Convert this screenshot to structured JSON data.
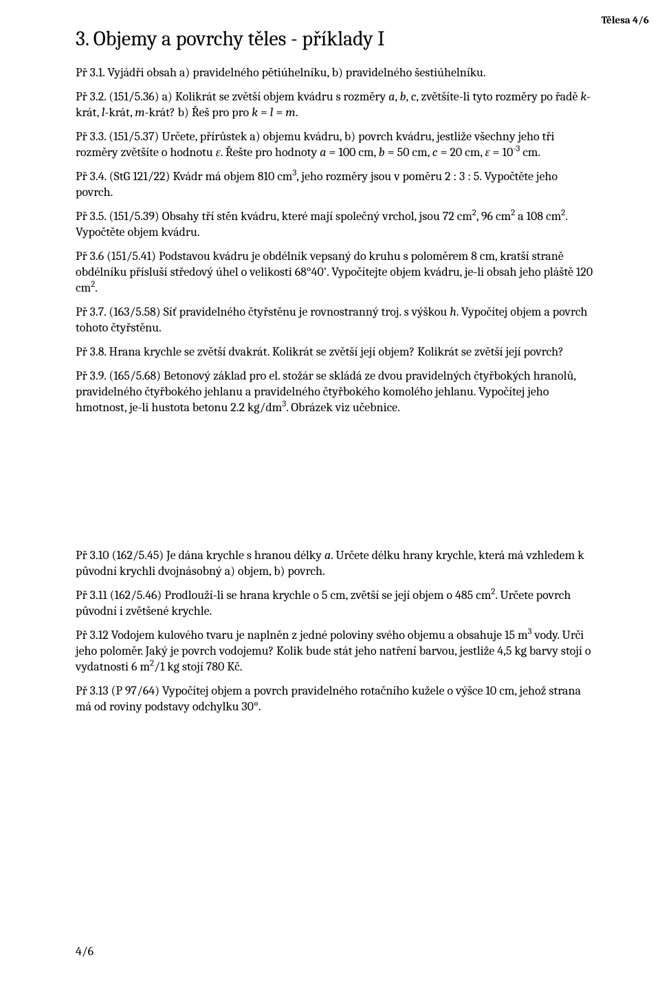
{
  "header": {
    "right": "Tělesa  4/6"
  },
  "title": "3. Objemy a povrchy těles - příklady I",
  "paras": {
    "p1": {
      "a": "Př 3.1. Vyjádři obsah a) pravidelného pětiúhelníku, b) pravidelného šestiúhelníku."
    },
    "p2": {
      "a": "Př 3.2.  (151/5.36)  a) Kolikrát se zvětší objem kvádru s rozměry ",
      "b": ", zvětšíte-li tyto rozměry po řadě ",
      "c": "-krát, ",
      "d": "-krát, ",
      "e": "-krát? b) Řeš pro pro ",
      "f": " = ",
      "g": " = ",
      "h": "."
    },
    "p3": {
      "a": "Př 3.3. (151/5.37) Určete, přírůstek a) objemu kvádru, b) povrch kvádru, jestliže všechny jeho tři rozměry zvětšíte o hodnotu ",
      "b": ". Řešte pro hodnoty ",
      "c": " = 100 cm, ",
      "d": " = 50 cm, ",
      "e": " = 20 cm, ",
      "f": " = 10",
      "g": " cm."
    },
    "p4": {
      "a": "Př 3.4. (StG 121/22) Kvádr má objem 810 cm",
      "b": ", jeho rozměry jsou v poměru 2 : 3 : 5. Vypočtěte jeho povrch."
    },
    "p5": {
      "a": "Př 3.5. (151/5.39) Obsahy tří stěn kvádru, které mají společný vrchol, jsou 72 cm",
      "b": ", 96 cm",
      "c": " a 108 cm",
      "d": ". Vypočtěte objem kvádru."
    },
    "p6": {
      "a": "Př 3.6 (151/5.41) Podstavou kvádru je obdélník vepsaný do kruhu s poloměrem 8 cm, kratší straně obdélníku přísluší středový úhel o velikosti 68°40'. Vypočítejte objem kvádru, je-li obsah jeho pláště 120 cm",
      "b": "."
    },
    "p7": {
      "a": "Př 3.7. (163/5.58) Síť pravidelného čtyřstěnu je rovnostranný troj. s výškou ",
      "b": ". Vypočítej objem a povrch tohoto čtyřstěnu."
    },
    "p8": {
      "a": "Př 3.8. Hrana krychle se zvětší dvakrát. Kolikrát se zvětší její objem? Kolikrát se zvětší její povrch?"
    },
    "p9": {
      "a": "Př 3.9. (165/5.68)  Betonový základ pro el. stožár se skládá ze dvou pravidelných čtyřbokých hranolů, pravidelného čtyřbokého jehlanu a pravidelného čtyřbokého komolého jehlanu. Vypočítej jeho hmotnost, je-li hustota betonu 2.2 kg/dm",
      "b": ". Obrázek viz učebnice."
    },
    "p10": {
      "a": "Př 3.10 (162/5.45) Je dána krychle s hranou délky ",
      "b": ". Určete délku hrany krychle, která má vzhledem k původní krychli dvojnásobný a) objem, b) povrch."
    },
    "p11": {
      "a": "Př 3.11 (162/5.46) Prodlouží-li se hrana krychle o 5 cm, zvětší se její objem o 485 cm",
      "b": ". Určete povrch původní i zvětšené krychle."
    },
    "p12": {
      "a": "Př 3.12  Vodojem kulového tvaru je naplněn z jedné poloviny svého objemu a obsahuje 15 m",
      "b": " vody. Urči jeho poloměr. Jaký je povrch vodojemu? Kolik bude stát jeho natření barvou, jestliže 4,5 kg barvy stojí o vydatnosti 6 m",
      "c": "/1 kg stojí 780 Kč."
    },
    "p13": {
      "a": "Př 3.13 (P 97/64)  Vypočítej objem a povrch pravidelného rotačního kužele o výšce 10 cm, jehož strana má od roviny podstavy odchylku 30°."
    }
  },
  "sym": {
    "a": "a",
    "b": "b",
    "c": "c",
    "k": "k",
    "l": "l",
    "m": "m",
    "h": "h",
    "eps": "ε",
    "sup2": "2",
    "sup3": "3",
    "supm3": "-3"
  },
  "footer": "4/6"
}
